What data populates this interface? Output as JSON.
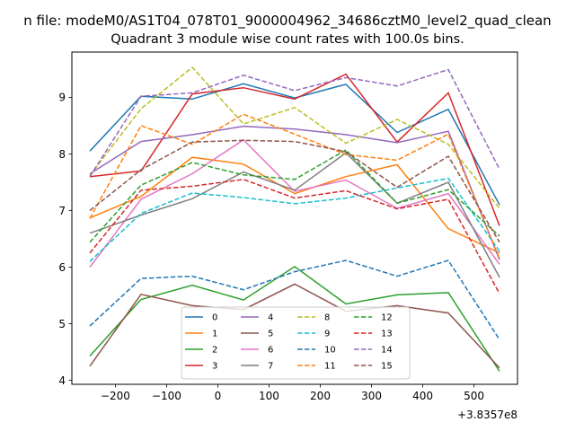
{
  "chart_data": {
    "type": "line",
    "suptitle": "n file: modeM0/AS1T04_078T01_9000004962_34686cztM0_level2_quad_clean",
    "title": "Quadrant 3 module wise count rates with 100.0s bins.",
    "offset_label": "+3.8357e8",
    "x": [
      -250,
      -150,
      -50,
      50,
      150,
      250,
      350,
      450,
      550
    ],
    "xlim": [
      -285,
      585
    ],
    "ylim": [
      3.93,
      9.8
    ],
    "xticks": [
      -200,
      -100,
      0,
      100,
      200,
      300,
      400,
      500
    ],
    "xtick_labels": [
      "−200",
      "−100",
      "0",
      "100",
      "200",
      "300",
      "400",
      "500"
    ],
    "yticks": [
      4,
      5,
      6,
      7,
      8,
      9
    ],
    "ytick_labels": [
      "4",
      "5",
      "6",
      "7",
      "8",
      "9"
    ],
    "legend_location": "lower center",
    "series": [
      {
        "name": "0",
        "color": "#1f77b4",
        "dash": "solid",
        "values": [
          8.05,
          9.02,
          8.97,
          9.24,
          8.99,
          9.23,
          8.38,
          8.79,
          7.1
        ]
      },
      {
        "name": "1",
        "color": "#ff7f0e",
        "dash": "solid",
        "values": [
          6.87,
          7.25,
          7.94,
          7.82,
          7.3,
          7.6,
          7.81,
          6.68,
          6.25
        ]
      },
      {
        "name": "2",
        "color": "#2ca02c",
        "dash": "solid",
        "values": [
          4.43,
          5.43,
          5.68,
          5.42,
          6.01,
          5.35,
          5.51,
          5.55,
          4.16
        ]
      },
      {
        "name": "3",
        "color": "#d62728",
        "dash": "solid",
        "values": [
          7.6,
          7.7,
          9.06,
          9.17,
          8.97,
          9.41,
          8.21,
          9.08,
          6.73
        ]
      },
      {
        "name": "4",
        "color": "#9467bd",
        "dash": "solid",
        "values": [
          7.65,
          8.22,
          8.34,
          8.49,
          8.44,
          8.34,
          8.2,
          8.4,
          6.13
        ]
      },
      {
        "name": "5",
        "color": "#8c564b",
        "dash": "solid",
        "values": [
          4.25,
          5.52,
          5.32,
          5.25,
          5.7,
          5.22,
          5.32,
          5.19,
          4.22
        ]
      },
      {
        "name": "6",
        "color": "#e377c2",
        "dash": "solid",
        "values": [
          6.0,
          7.2,
          7.65,
          8.25,
          7.34,
          7.54,
          7.04,
          7.3,
          6.05
        ]
      },
      {
        "name": "7",
        "color": "#7f7f7f",
        "dash": "solid",
        "values": [
          6.6,
          6.92,
          7.21,
          7.68,
          7.36,
          8.02,
          7.13,
          7.5,
          5.82
        ]
      },
      {
        "name": "8",
        "color": "#bcbd22",
        "dash": "dashed",
        "values": [
          7.62,
          8.8,
          9.53,
          8.53,
          8.82,
          8.19,
          8.61,
          8.17,
          7.04
        ]
      },
      {
        "name": "9",
        "color": "#17becf",
        "dash": "dashed",
        "values": [
          6.1,
          6.95,
          7.31,
          7.23,
          7.12,
          7.22,
          7.4,
          7.57,
          6.28
        ]
      },
      {
        "name": "10",
        "color": "#1f77b4",
        "dash": "dashed",
        "values": [
          4.96,
          5.8,
          5.84,
          5.6,
          5.92,
          6.12,
          5.84,
          6.12,
          4.72
        ]
      },
      {
        "name": "11",
        "color": "#ff7f0e",
        "dash": "dashed",
        "values": [
          6.86,
          8.5,
          8.17,
          8.7,
          8.35,
          7.99,
          7.89,
          8.35,
          6.15
        ]
      },
      {
        "name": "12",
        "color": "#2ca02c",
        "dash": "dashed",
        "values": [
          6.44,
          7.45,
          7.85,
          7.63,
          7.55,
          8.07,
          7.13,
          7.37,
          6.55
        ]
      },
      {
        "name": "13",
        "color": "#d62728",
        "dash": "dashed",
        "values": [
          6.25,
          7.36,
          7.43,
          7.55,
          7.22,
          7.35,
          7.03,
          7.2,
          5.53
        ]
      },
      {
        "name": "14",
        "color": "#9467bd",
        "dash": "dashed",
        "values": [
          7.6,
          9.02,
          9.08,
          9.39,
          9.12,
          9.35,
          9.2,
          9.49,
          7.73
        ]
      },
      {
        "name": "15",
        "color": "#8c564b",
        "dash": "dashed",
        "values": [
          7.0,
          7.72,
          8.21,
          8.24,
          8.22,
          8.04,
          7.41,
          7.96,
          6.44
        ]
      }
    ]
  }
}
